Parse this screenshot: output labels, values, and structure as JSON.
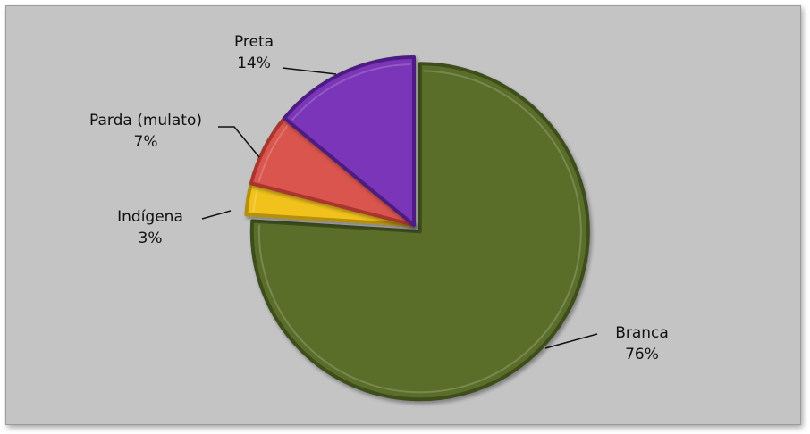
{
  "chart_data": {
    "type": "pie",
    "title": "",
    "categories": [
      "Branca",
      "Indígena",
      "Parda (mulato)",
      "Preta"
    ],
    "values": [
      76,
      3,
      7,
      14
    ],
    "value_labels": [
      "76%",
      "3%",
      "7%",
      "14%"
    ],
    "colors": [
      "#5a6e2c",
      "#f2c21a",
      "#d9544e",
      "#7a36b8"
    ],
    "edge_colors": [
      "#3e4d1c",
      "#b58f0a",
      "#a8352f",
      "#4e1f82"
    ],
    "legend": "none",
    "exploded": "Branca"
  }
}
